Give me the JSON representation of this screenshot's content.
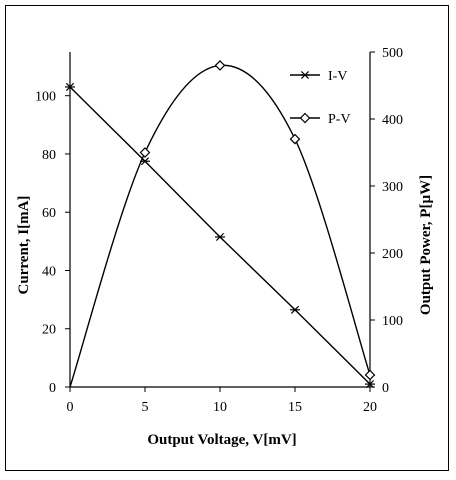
{
  "chart_data": {
    "type": "line",
    "xlabel": "Output Voltage, V[mV]",
    "ylabel": "Current, I[mA]",
    "y2label": "Output Power, P[µW]",
    "xlim": [
      0,
      20
    ],
    "ylim": [
      0,
      115
    ],
    "y2lim": [
      0,
      500
    ],
    "xticks": [
      0,
      5,
      10,
      15,
      20
    ],
    "yticks": [
      0,
      20,
      40,
      60,
      80,
      100
    ],
    "y2ticks": [
      0,
      100,
      200,
      300,
      400,
      500
    ],
    "legend_position": "top-right",
    "grid": false,
    "series": [
      {
        "name": "I-V",
        "axis": "left",
        "marker": "asterisk",
        "x": [
          0,
          5,
          10,
          15,
          20
        ],
        "values": [
          103,
          77.5,
          51.5,
          26.5,
          1
        ]
      },
      {
        "name": "P-V",
        "axis": "right",
        "marker": "diamond",
        "x": [
          0,
          5,
          10,
          15,
          20
        ],
        "values": [
          0,
          350,
          480,
          370,
          18
        ]
      }
    ]
  }
}
